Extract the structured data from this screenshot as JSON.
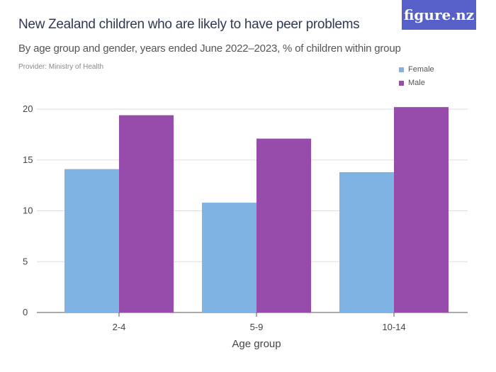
{
  "header": {
    "title": "New Zealand children who are likely to have peer problems",
    "subtitle": "By age group and gender, years ended June 2022–2023, % of children within group",
    "provider": "Provider: Ministry of Health",
    "logo": "figure.nz"
  },
  "colors": {
    "female": "#7fb3e3",
    "male": "#974baa",
    "logo_bg": "#5560c8"
  },
  "chart_data": {
    "type": "bar",
    "categories": [
      "2-4",
      "5-9",
      "10-14"
    ],
    "series": [
      {
        "name": "Female",
        "values": [
          14.1,
          10.8,
          13.8
        ]
      },
      {
        "name": "Male",
        "values": [
          19.4,
          17.1,
          20.2
        ]
      }
    ],
    "xlabel": "Age group",
    "ylabel": "",
    "ylim": [
      0,
      20
    ],
    "yticks": [
      "0",
      "5",
      "10",
      "15",
      "20"
    ],
    "grid": true,
    "legend": "top-right"
  }
}
